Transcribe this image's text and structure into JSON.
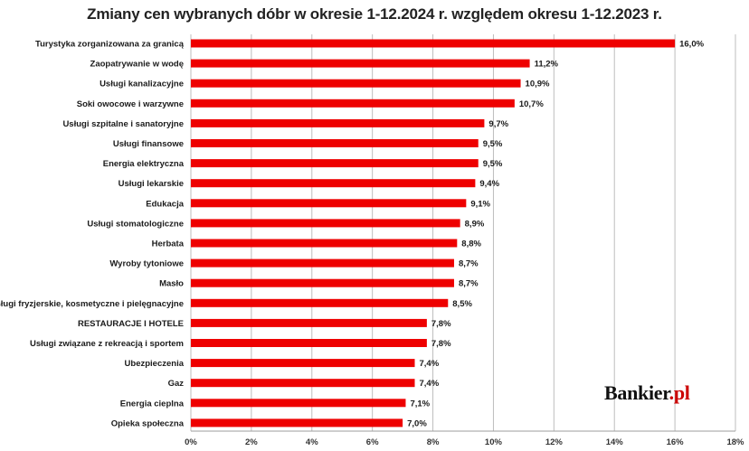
{
  "chart_data": {
    "type": "bar",
    "orientation": "horizontal",
    "title": "Zmiany cen wybranych dóbr w okresie 1-12.2024 r. względem okresu 1-12.2023 r.",
    "categories": [
      "Turystyka zorganizowana za granicą",
      "Zaopatrywanie w wodę",
      "Usługi kanalizacyjne",
      "Soki owocowe i warzywne",
      "Usługi szpitalne i sanatoryjne",
      "Usługi finansowe",
      "Energia elektryczna",
      "Usługi lekarskie",
      "Edukacja",
      "Usługi stomatologiczne",
      "Herbata",
      "Wyroby tytoniowe",
      "Masło",
      "Usługi fryzjerskie, kosmetyczne i pielęgnacyjne",
      "RESTAURACJE I HOTELE",
      "Usługi związane z rekreacją i sportem",
      "Ubezpieczenia",
      "Gaz",
      "Energia cieplna",
      "Opieka społeczna"
    ],
    "values": [
      16.0,
      11.2,
      10.9,
      10.7,
      9.7,
      9.5,
      9.5,
      9.4,
      9.1,
      8.9,
      8.8,
      8.7,
      8.7,
      8.5,
      7.8,
      7.8,
      7.4,
      7.4,
      7.1,
      7.0
    ],
    "value_labels": [
      "16,0%",
      "11,2%",
      "10,9%",
      "10,7%",
      "9,7%",
      "9,5%",
      "9,5%",
      "9,4%",
      "9,1%",
      "8,9%",
      "8,8%",
      "8,7%",
      "8,7%",
      "8,5%",
      "7,8%",
      "7,8%",
      "7,4%",
      "7,4%",
      "7,1%",
      "7,0%"
    ],
    "xlim": [
      0,
      18
    ],
    "x_ticks": [
      0,
      2,
      4,
      6,
      8,
      10,
      12,
      14,
      16,
      18
    ],
    "x_tick_labels": [
      "0%",
      "2%",
      "4%",
      "6%",
      "8%",
      "10%",
      "12%",
      "14%",
      "16%",
      "18%"
    ],
    "xlabel": "",
    "ylabel": "",
    "grid": "vertical",
    "bar_color": "#ee0000",
    "grid_color": "#bdbdbd"
  },
  "brand": {
    "name": "Bankier",
    "suffix": ".pl"
  }
}
